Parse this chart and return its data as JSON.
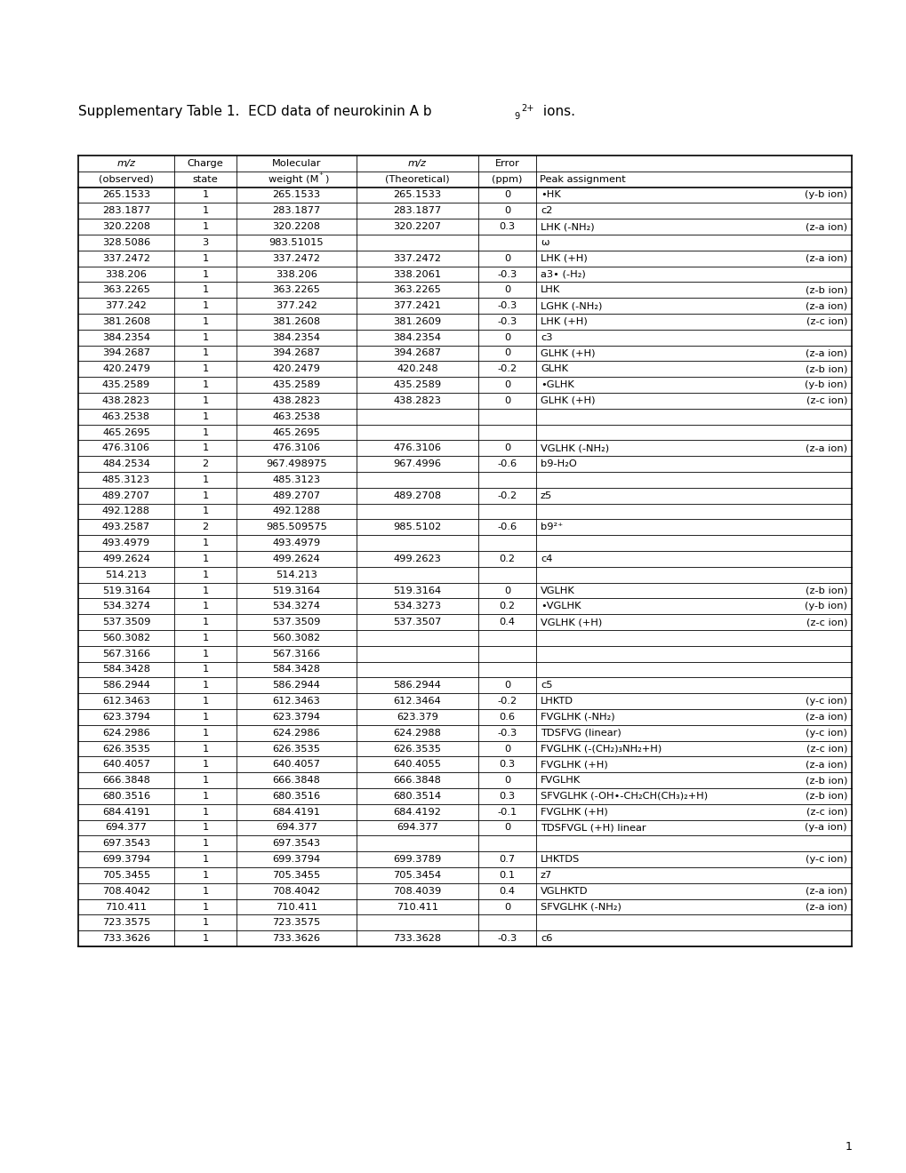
{
  "fig_width": 10.2,
  "fig_height": 13.2,
  "title_font_size": 11.0,
  "font_size": 8.2,
  "rows": [
    [
      "265.1533",
      "1",
      "265.1533",
      "265.1533",
      "0",
      "•HK",
      "(y-b ion)"
    ],
    [
      "283.1877",
      "1",
      "283.1877",
      "283.1877",
      "0",
      "c2",
      ""
    ],
    [
      "320.2208",
      "1",
      "320.2208",
      "320.2207",
      "0.3",
      "LHK (-NH₂)",
      "(z-a ion)"
    ],
    [
      "328.5086",
      "3",
      "983.51015",
      "",
      "",
      "ω",
      ""
    ],
    [
      "337.2472",
      "1",
      "337.2472",
      "337.2472",
      "0",
      "LHK (+H)",
      "(z-a ion)"
    ],
    [
      "338.206",
      "1",
      "338.206",
      "338.2061",
      "-0.3",
      "a3• (-H₂)",
      ""
    ],
    [
      "363.2265",
      "1",
      "363.2265",
      "363.2265",
      "0",
      "LHK",
      "(z-b ion)"
    ],
    [
      "377.242",
      "1",
      "377.242",
      "377.2421",
      "-0.3",
      "LGHK (-NH₂)",
      "(z-a ion)"
    ],
    [
      "381.2608",
      "1",
      "381.2608",
      "381.2609",
      "-0.3",
      "LHK (+H)",
      "(z-c ion)"
    ],
    [
      "384.2354",
      "1",
      "384.2354",
      "384.2354",
      "0",
      "c3",
      ""
    ],
    [
      "394.2687",
      "1",
      "394.2687",
      "394.2687",
      "0",
      "GLHK (+H)",
      "(z-a ion)"
    ],
    [
      "420.2479",
      "1",
      "420.2479",
      "420.248",
      "-0.2",
      "GLHK",
      "(z-b ion)"
    ],
    [
      "435.2589",
      "1",
      "435.2589",
      "435.2589",
      "0",
      "•GLHK",
      "(y-b ion)"
    ],
    [
      "438.2823",
      "1",
      "438.2823",
      "438.2823",
      "0",
      "GLHK (+H)",
      "(z-c ion)"
    ],
    [
      "463.2538",
      "1",
      "463.2538",
      "",
      "",
      "",
      ""
    ],
    [
      "465.2695",
      "1",
      "465.2695",
      "",
      "",
      "",
      ""
    ],
    [
      "476.3106",
      "1",
      "476.3106",
      "476.3106",
      "0",
      "VGLHK (-NH₂)",
      "(z-a ion)"
    ],
    [
      "484.2534",
      "2",
      "967.498975",
      "967.4996",
      "-0.6",
      "b9-H₂O",
      ""
    ],
    [
      "485.3123",
      "1",
      "485.3123",
      "",
      "",
      "",
      ""
    ],
    [
      "489.2707",
      "1",
      "489.2707",
      "489.2708",
      "-0.2",
      "z5",
      ""
    ],
    [
      "492.1288",
      "1",
      "492.1288",
      "",
      "",
      "",
      ""
    ],
    [
      "493.2587",
      "2",
      "985.509575",
      "985.5102",
      "-0.6",
      "b9²⁺",
      ""
    ],
    [
      "493.4979",
      "1",
      "493.4979",
      "",
      "",
      "",
      ""
    ],
    [
      "499.2624",
      "1",
      "499.2624",
      "499.2623",
      "0.2",
      "c4",
      ""
    ],
    [
      "514.213",
      "1",
      "514.213",
      "",
      "",
      "",
      ""
    ],
    [
      "519.3164",
      "1",
      "519.3164",
      "519.3164",
      "0",
      "VGLHK",
      "(z-b ion)"
    ],
    [
      "534.3274",
      "1",
      "534.3274",
      "534.3273",
      "0.2",
      "•VGLHK",
      "(y-b ion)"
    ],
    [
      "537.3509",
      "1",
      "537.3509",
      "537.3507",
      "0.4",
      "VGLHK (+H)",
      "(z-c ion)"
    ],
    [
      "560.3082",
      "1",
      "560.3082",
      "",
      "",
      "",
      ""
    ],
    [
      "567.3166",
      "1",
      "567.3166",
      "",
      "",
      "",
      ""
    ],
    [
      "584.3428",
      "1",
      "584.3428",
      "",
      "",
      "",
      ""
    ],
    [
      "586.2944",
      "1",
      "586.2944",
      "586.2944",
      "0",
      "c5",
      ""
    ],
    [
      "612.3463",
      "1",
      "612.3463",
      "612.3464",
      "-0.2",
      "LHKTD",
      "(y-c ion)"
    ],
    [
      "623.3794",
      "1",
      "623.3794",
      "623.379",
      "0.6",
      "FVGLHK (-NH₂)",
      "(z-a ion)"
    ],
    [
      "624.2986",
      "1",
      "624.2986",
      "624.2988",
      "-0.3",
      "TDSFVG (linear)",
      "(y-c ion)"
    ],
    [
      "626.3535",
      "1",
      "626.3535",
      "626.3535",
      "0",
      "FVGLHK (-(CH₂)₃NH₂+H)",
      "(z-c ion)"
    ],
    [
      "640.4057",
      "1",
      "640.4057",
      "640.4055",
      "0.3",
      "FVGLHK (+H)",
      "(z-a ion)"
    ],
    [
      "666.3848",
      "1",
      "666.3848",
      "666.3848",
      "0",
      "FVGLHK",
      "(z-b ion)"
    ],
    [
      "680.3516",
      "1",
      "680.3516",
      "680.3514",
      "0.3",
      "SFVGLHK (-OH•-CH₂CH(CH₃)₂+H)",
      "(z-b ion)"
    ],
    [
      "684.4191",
      "1",
      "684.4191",
      "684.4192",
      "-0.1",
      "FVGLHK (+H)",
      "(z-c ion)"
    ],
    [
      "694.377",
      "1",
      "694.377",
      "694.377",
      "0",
      "TDSFVGL (+H) linear",
      "(y-a ion)"
    ],
    [
      "697.3543",
      "1",
      "697.3543",
      "",
      "",
      "",
      ""
    ],
    [
      "699.3794",
      "1",
      "699.3794",
      "699.3789",
      "0.7",
      "LHKTDS",
      "(y-c ion)"
    ],
    [
      "705.3455",
      "1",
      "705.3455",
      "705.3454",
      "0.1",
      "z7",
      ""
    ],
    [
      "708.4042",
      "1",
      "708.4042",
      "708.4039",
      "0.4",
      "VGLHKTD",
      "(z-a ion)"
    ],
    [
      "710.411",
      "1",
      "710.411",
      "710.411",
      "0",
      "SFVGLHK (-NH₂)",
      "(z-a ion)"
    ],
    [
      "723.3575",
      "1",
      "723.3575",
      "",
      "",
      "",
      ""
    ],
    [
      "733.3626",
      "1",
      "733.3626",
      "733.3628",
      "-0.3",
      "c6",
      ""
    ]
  ]
}
